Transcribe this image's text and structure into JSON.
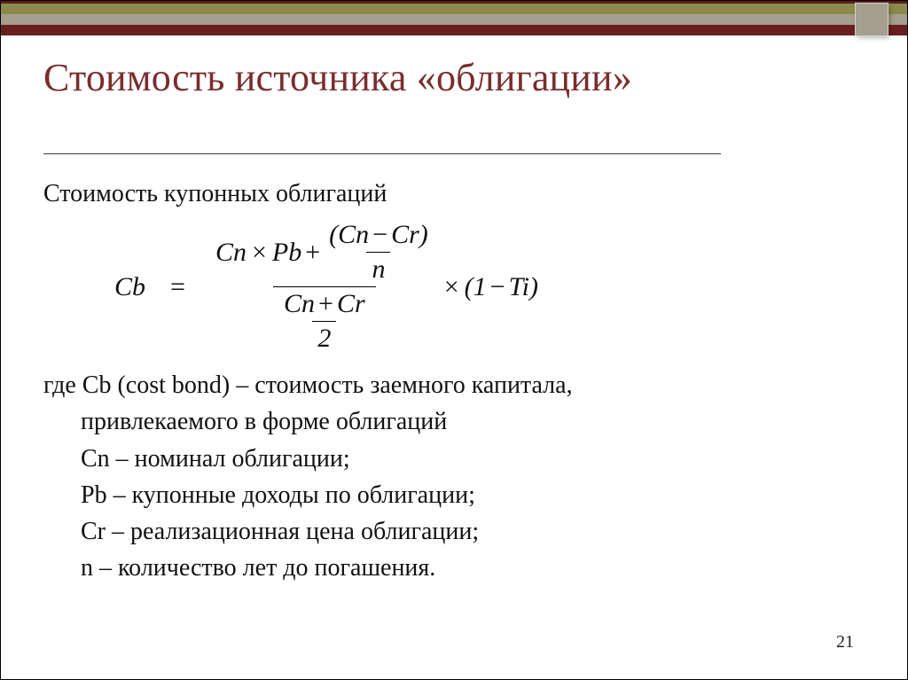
{
  "colors": {
    "title": "#7a2d2d",
    "stripe_olive": "#8a8a4a",
    "stripe_taupe": "#a59f8f",
    "stripe_maroon": "#6a1f1f",
    "background": "#ffffff",
    "text": "#111111"
  },
  "title": "Стоимость источника «облигации»",
  "subtitle": "Стоимость купонных облигаций",
  "formula": {
    "lhs": "Cb",
    "eq": "=",
    "Cn": "Cn",
    "Pb": "Pb",
    "Cr": "Cr",
    "n": "n",
    "two": "2",
    "tax_left": "(1",
    "tax_minus": "−",
    "tax_Ti": "Ti)",
    "plus": "+",
    "minus": "−",
    "times": "×",
    "lparen": "(",
    "rparen": ")"
  },
  "definitions": {
    "where": "где  Cb (cost bond) – стоимость заемного капитала,",
    "where2": "привлекаемого в форме облигаций",
    "cn": "Cn – номинал облигации;",
    "pb": "Pb – купонные доходы по облигации;",
    "cr": "Cr – реализационная цена облигации;",
    "n": "n – количество лет до погашения."
  },
  "page_number": "21"
}
